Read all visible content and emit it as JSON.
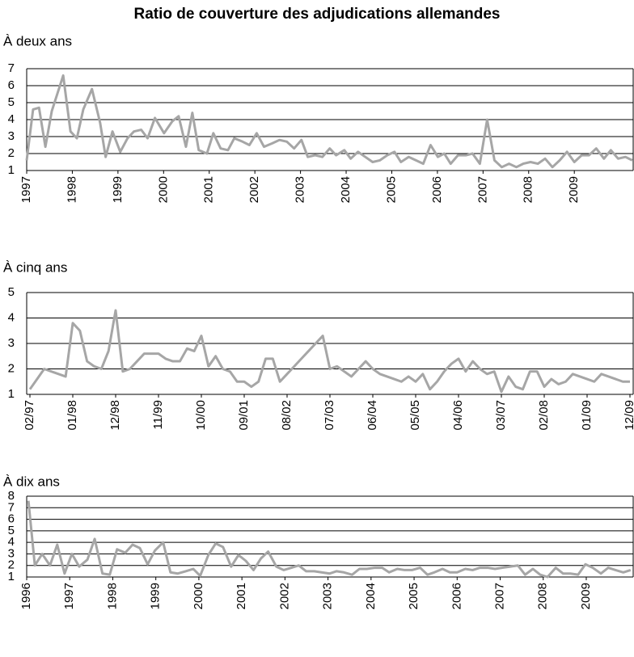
{
  "title": "Ratio de couverture des adjudications allemandes",
  "chart_data": [
    {
      "type": "line",
      "title": "À deux ans",
      "color": "#a6a6a6",
      "grid": true,
      "x": [
        1997.0,
        1997.14,
        1997.27,
        1997.41,
        1997.55,
        1997.8,
        1997.96,
        1998.1,
        1998.24,
        1998.43,
        1998.61,
        1998.73,
        1998.88,
        1999.05,
        1999.21,
        1999.35,
        1999.51,
        1999.65,
        1999.81,
        2000.01,
        2000.19,
        2000.33,
        2000.49,
        2000.63,
        2000.77,
        2000.95,
        2001.09,
        2001.25,
        2001.41,
        2001.55,
        2001.73,
        2001.88,
        2002.04,
        2002.2,
        2002.38,
        2002.54,
        2002.7,
        2002.86,
        2003.02,
        2003.16,
        2003.32,
        2003.48,
        2003.64,
        2003.78,
        2003.96,
        2004.1,
        2004.26,
        2004.42,
        2004.58,
        2004.74,
        2004.9,
        2005.06,
        2005.2,
        2005.37,
        2005.53,
        2005.69,
        2005.85,
        2006.01,
        2006.15,
        2006.29,
        2006.45,
        2006.63,
        2006.77,
        2006.93,
        2007.09,
        2007.25,
        2007.41,
        2007.57,
        2007.73,
        2007.88,
        2008.04,
        2008.2,
        2008.36,
        2008.52,
        2008.68,
        2008.84,
        2009.0,
        2009.16,
        2009.32,
        2009.48,
        2009.65,
        2009.8,
        2009.96,
        2010.12,
        2010.27
      ],
      "values": [
        1.6,
        4.6,
        4.7,
        2.4,
        4.5,
        6.6,
        3.3,
        2.9,
        4.6,
        5.8,
        3.8,
        1.8,
        3.3,
        2.1,
        2.9,
        3.3,
        3.4,
        2.9,
        4.1,
        3.2,
        3.9,
        4.2,
        2.4,
        4.4,
        2.2,
        2.0,
        3.2,
        2.3,
        2.2,
        2.9,
        2.7,
        2.5,
        3.2,
        2.4,
        2.6,
        2.8,
        2.7,
        2.3,
        2.8,
        1.8,
        1.9,
        1.8,
        2.3,
        1.9,
        2.2,
        1.7,
        2.1,
        1.8,
        1.5,
        1.6,
        1.9,
        2.1,
        1.5,
        1.8,
        1.6,
        1.4,
        2.5,
        1.8,
        2.0,
        1.4,
        1.9,
        1.9,
        2.0,
        1.4,
        4.0,
        1.6,
        1.2,
        1.4,
        1.2,
        1.4,
        1.5,
        1.4,
        1.7,
        1.2,
        1.6,
        2.1,
        1.5,
        1.9,
        1.9,
        2.3,
        1.7,
        2.2,
        1.7,
        1.8,
        1.6
      ],
      "xlim": [
        1997,
        2010.29
      ],
      "xticks": [
        1997,
        1998,
        1999,
        2000,
        2001,
        2002,
        2003,
        2004,
        2005,
        2006,
        2007,
        2008,
        2009
      ],
      "ylim": [
        1,
        7
      ],
      "yticks": [
        1,
        2,
        3,
        4,
        5,
        6,
        7
      ]
    },
    {
      "type": "line",
      "title": "À cinq ans",
      "color": "#a6a6a6",
      "grid": true,
      "categories": [
        "02/97",
        null,
        null,
        null,
        null,
        null,
        "01/98",
        null,
        null,
        null,
        null,
        null,
        "12/98",
        null,
        null,
        null,
        null,
        null,
        "11/99",
        null,
        null,
        null,
        null,
        null,
        "10/00",
        null,
        null,
        null,
        null,
        null,
        "09/01",
        null,
        null,
        null,
        null,
        null,
        "08/02",
        null,
        null,
        null,
        null,
        null,
        "07/03",
        null,
        null,
        null,
        null,
        null,
        "06/04",
        null,
        null,
        null,
        null,
        null,
        "05/05",
        null,
        null,
        null,
        null,
        null,
        "04/06",
        null,
        null,
        null,
        null,
        null,
        "03/07",
        null,
        null,
        null,
        null,
        null,
        "02/08",
        null,
        null,
        null,
        null,
        null,
        "01/09",
        null,
        null,
        null,
        null,
        null,
        "12/09"
      ],
      "values": [
        1.2,
        1.6,
        2.0,
        1.9,
        1.8,
        1.7,
        3.8,
        3.5,
        2.3,
        2.1,
        2.0,
        2.7,
        4.3,
        1.9,
        2.0,
        2.3,
        2.6,
        2.6,
        2.6,
        2.4,
        2.3,
        2.3,
        2.8,
        2.7,
        3.3,
        2.1,
        2.5,
        2.0,
        1.9,
        1.5,
        1.5,
        1.3,
        1.5,
        2.4,
        2.4,
        1.5,
        1.8,
        2.1,
        2.4,
        2.7,
        3.0,
        3.3,
        2.0,
        2.1,
        1.9,
        1.7,
        2.0,
        2.3,
        2.0,
        1.8,
        1.7,
        1.6,
        1.5,
        1.7,
        1.5,
        1.8,
        1.2,
        1.5,
        1.9,
        2.2,
        2.4,
        1.9,
        2.3,
        2.0,
        1.8,
        1.9,
        1.1,
        1.7,
        1.3,
        1.2,
        1.9,
        1.9,
        1.3,
        1.6,
        1.4,
        1.5,
        1.8,
        1.7,
        1.6,
        1.5,
        1.8,
        1.7,
        1.6,
        1.5,
        1.5
      ],
      "ylim": [
        1,
        5
      ],
      "yticks": [
        1,
        2,
        3,
        4,
        5
      ]
    },
    {
      "type": "line",
      "title": "À dix ans",
      "color": "#a6a6a6",
      "grid": true,
      "x": [
        1996.04,
        1996.19,
        1996.36,
        1996.54,
        1996.71,
        1996.88,
        1997.05,
        1997.22,
        1997.41,
        1997.58,
        1997.76,
        1997.93,
        1998.1,
        1998.29,
        1998.46,
        1998.63,
        1998.81,
        1998.98,
        1999.17,
        1999.34,
        1999.51,
        1999.7,
        1999.87,
        2000.03,
        2000.22,
        2000.39,
        2000.56,
        2000.75,
        2000.92,
        2001.09,
        2001.27,
        2001.44,
        2001.61,
        2001.8,
        2001.97,
        2002.15,
        2002.32,
        2002.49,
        2002.68,
        2002.85,
        2003.04,
        2003.2,
        2003.37,
        2003.56,
        2003.73,
        2003.9,
        2004.09,
        2004.26,
        2004.42,
        2004.61,
        2004.78,
        2004.95,
        2005.14,
        2005.31,
        2005.47,
        2005.66,
        2005.83,
        2006.0,
        2006.19,
        2006.36,
        2006.53,
        2006.71,
        2006.88,
        2007.05,
        2007.24,
        2007.41,
        2007.58,
        2007.76,
        2007.93,
        2008.1,
        2008.29,
        2008.46,
        2008.63,
        2008.81,
        2008.98,
        2009.15,
        2009.34,
        2009.51,
        2009.68,
        2009.86,
        2010.03
      ],
      "values": [
        7.6,
        2.0,
        3.0,
        2.0,
        3.8,
        1.3,
        3.0,
        1.9,
        2.5,
        4.3,
        1.3,
        1.2,
        3.4,
        3.1,
        3.8,
        3.5,
        2.1,
        3.3,
        4.0,
        1.4,
        1.3,
        1.5,
        1.7,
        1.1,
        2.9,
        3.9,
        3.6,
        1.9,
        2.9,
        2.4,
        1.6,
        2.6,
        3.2,
        1.9,
        1.6,
        1.8,
        2.0,
        1.5,
        1.5,
        1.4,
        1.3,
        1.5,
        1.4,
        1.2,
        1.7,
        1.7,
        1.8,
        1.8,
        1.4,
        1.7,
        1.6,
        1.6,
        1.8,
        1.2,
        1.4,
        1.7,
        1.4,
        1.4,
        1.7,
        1.6,
        1.8,
        1.8,
        1.7,
        1.8,
        1.9,
        2.0,
        1.2,
        1.7,
        1.2,
        1.0,
        1.8,
        1.3,
        1.3,
        1.2,
        2.1,
        1.8,
        1.3,
        1.8,
        1.6,
        1.4,
        1.6
      ],
      "xlim": [
        1996,
        2010.09
      ],
      "xticks": [
        1996,
        1997,
        1998,
        1999,
        2000,
        2001,
        2002,
        2003,
        2004,
        2005,
        2006,
        2007,
        2008,
        2009
      ],
      "ylim": [
        1,
        8
      ],
      "yticks": [
        1,
        2,
        3,
        4,
        5,
        6,
        7,
        8
      ]
    }
  ]
}
